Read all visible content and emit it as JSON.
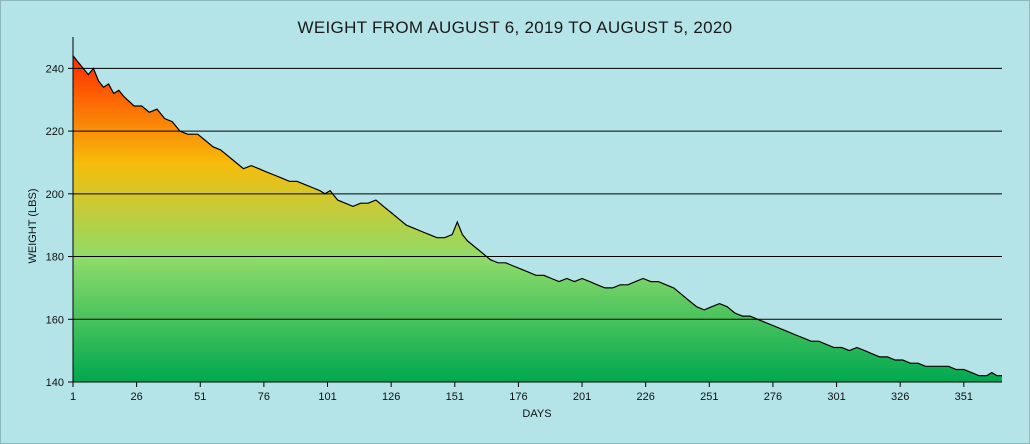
{
  "chart_data": {
    "type": "area",
    "title": "WEIGHT FROM AUGUST 6, 2019 TO AUGUST 5, 2020",
    "xlabel": "DAYS",
    "ylabel": "WEIGHT (LBS)",
    "xlim": [
      1,
      366
    ],
    "ylim": [
      140,
      250
    ],
    "xticks": [
      1,
      26,
      51,
      76,
      101,
      126,
      151,
      176,
      201,
      226,
      251,
      276,
      301,
      326,
      351
    ],
    "yticks": [
      140,
      160,
      180,
      200,
      220,
      240
    ],
    "grid": "horizontal",
    "fill_gradient": [
      "#ff2a00",
      "#f7bc0a",
      "#8fdc6a",
      "#00a850"
    ],
    "line_color": "#000000",
    "series": [
      {
        "x": [
          1,
          3,
          5,
          7,
          9,
          11,
          13,
          15,
          17,
          19,
          21,
          25,
          28,
          31,
          34,
          37,
          40,
          43,
          46,
          50,
          53,
          56,
          59,
          62,
          65,
          68,
          71,
          74,
          77,
          80,
          83,
          86,
          89,
          92,
          95,
          98,
          100,
          102,
          105,
          108,
          111,
          114,
          117,
          120,
          123,
          126,
          129,
          132,
          135,
          138,
          141,
          144,
          147,
          150,
          152,
          154,
          156,
          159,
          162,
          165,
          168,
          171,
          174,
          177,
          180,
          183,
          186,
          189,
          192,
          195,
          198,
          201,
          204,
          207,
          210,
          213,
          216,
          219,
          222,
          225,
          228,
          231,
          234,
          237,
          240,
          243,
          246,
          249,
          252,
          255,
          258,
          261,
          264,
          267,
          270,
          273,
          276,
          279,
          282,
          285,
          288,
          291,
          294,
          297,
          300,
          303,
          306,
          309,
          312,
          315,
          318,
          321,
          324,
          327,
          330,
          333,
          336,
          339,
          342,
          345,
          348,
          351,
          354,
          357,
          360,
          362,
          364,
          366
        ],
        "values": [
          244,
          242,
          240,
          238,
          240,
          236,
          234,
          235,
          232,
          233,
          231,
          228,
          228,
          226,
          227,
          224,
          223,
          220,
          219,
          219,
          217,
          215,
          214,
          212,
          210,
          208,
          209,
          208,
          207,
          206,
          205,
          204,
          204,
          203,
          202,
          201,
          200,
          201,
          198,
          197,
          196,
          197,
          197,
          198,
          196,
          194,
          192,
          190,
          189,
          188,
          187,
          186,
          186,
          187,
          191,
          187,
          185,
          183,
          181,
          179,
          178,
          178,
          177,
          176,
          175,
          174,
          174,
          173,
          172,
          173,
          172,
          173,
          172,
          171,
          170,
          170,
          171,
          171,
          172,
          173,
          172,
          172,
          171,
          170,
          168,
          166,
          164,
          163,
          164,
          165,
          164,
          162,
          161,
          161,
          160,
          159,
          158,
          157,
          156,
          155,
          154,
          153,
          153,
          152,
          151,
          151,
          150,
          151,
          150,
          149,
          148,
          148,
          147,
          147,
          146,
          146,
          145,
          145,
          145,
          145,
          144,
          144,
          143,
          142,
          142,
          143,
          142,
          142
        ]
      }
    ]
  }
}
